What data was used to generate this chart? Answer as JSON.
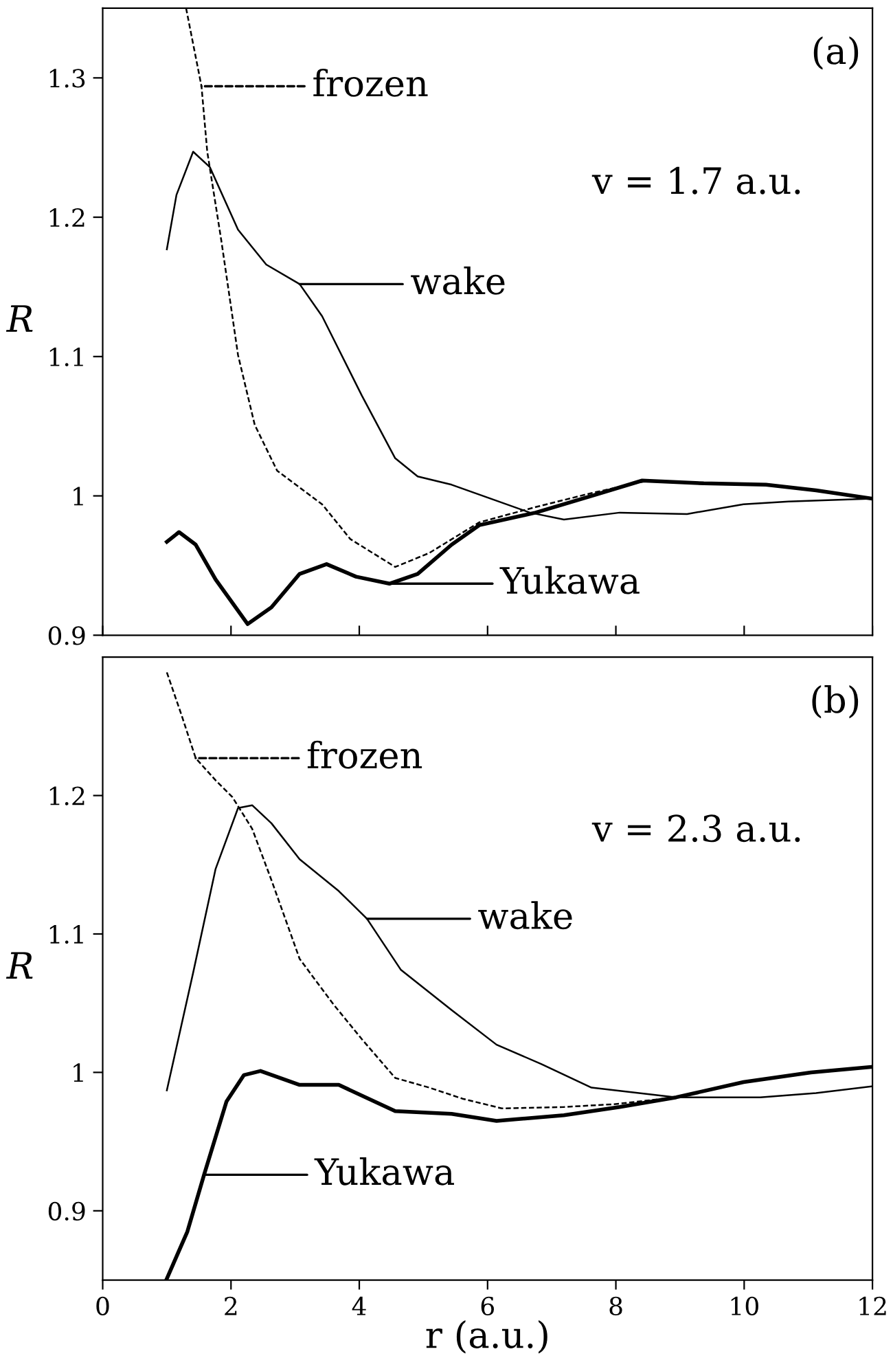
{
  "chart_data": [
    {
      "type": "line",
      "ylabel": "R",
      "xlim": [
        0,
        12
      ],
      "xticks": [
        {
          "value": 0,
          "label": null
        },
        {
          "value": 2,
          "label": null
        },
        {
          "value": 4,
          "label": null
        },
        {
          "value": 6,
          "label": null
        },
        {
          "value": 8,
          "label": null
        },
        {
          "value": 10,
          "label": null
        },
        {
          "value": 12,
          "label": null
        }
      ],
      "ylim": [
        0.9,
        1.35
      ],
      "yticks": [
        0.9,
        {
          "value": 1.0,
          "label": "1"
        },
        1.1,
        1.2,
        1.3
      ],
      "tick_labels": "y",
      "grid": false,
      "legend": "left",
      "series": [
        {
          "name": "frozen",
          "color": "#000000",
          "line_style": "dashed",
          "x": [
            1.3,
            1.54,
            1.63,
            1.85,
            2.11,
            2.37,
            2.72,
            3.07,
            3.42,
            3.86,
            4.56,
            5.09,
            5.87,
            6.75,
            7.62,
            8.5,
            9.37,
            10.34,
            11.12,
            12
          ],
          "values": [
            1.35,
            1.294,
            1.247,
            1.183,
            1.101,
            1.051,
            1.018,
            1.006,
            0.994,
            0.969,
            0.949,
            0.959,
            0.981,
            0.992,
            1.002,
            1.011,
            1.009,
            1.008,
            1.004,
            0.998
          ]
        },
        {
          "name": "wake",
          "color": "#000000",
          "line_style": "solid",
          "x": [
            1.0,
            1.15,
            1.41,
            1.67,
            2.11,
            2.55,
            3.07,
            3.42,
            4.04,
            4.56,
            4.91,
            5.44,
            6.05,
            6.66,
            7.19,
            8.06,
            9.11,
            9.99,
            10.69,
            12
          ],
          "values": [
            1.177,
            1.216,
            1.247,
            1.236,
            1.191,
            1.166,
            1.152,
            1.129,
            1.072,
            1.027,
            1.014,
            1.008,
            0.998,
            0.988,
            0.983,
            0.988,
            0.987,
            0.994,
            0.996,
            0.998
          ]
        },
        {
          "name": "Yukawa",
          "color": "#000000",
          "line_style": "solid",
          "x": [
            1.0,
            1.19,
            1.45,
            1.76,
            2.26,
            2.63,
            3.07,
            3.49,
            3.95,
            4.47,
            4.91,
            5.44,
            5.87,
            6.75,
            7.62,
            8.41,
            9.37,
            10.34,
            11.12,
            12
          ],
          "values": [
            0.967,
            0.974,
            0.965,
            0.94,
            0.908,
            0.92,
            0.944,
            0.951,
            0.942,
            0.937,
            0.944,
            0.965,
            0.979,
            0.988,
            1.0,
            1.011,
            1.009,
            1.008,
            1.004,
            0.998
          ]
        }
      ],
      "annotations": [
        "(a)",
        "v = 1.7 a.u."
      ]
    },
    {
      "type": "line",
      "xlabel": "r (a.u.)",
      "ylabel": "R",
      "xlim": [
        0,
        12
      ],
      "xticks": [
        0,
        2,
        4,
        6,
        8,
        10,
        12
      ],
      "ylim": [
        0.85,
        1.3
      ],
      "yticks": [
        0.9,
        {
          "value": 1.0,
          "label": "1"
        },
        1.1,
        1.2
      ],
      "grid": false,
      "legend": "left",
      "series": [
        {
          "name": "frozen",
          "color": "#000000",
          "line_style": "dashed",
          "x": [
            1.0,
            1.23,
            1.45,
            1.76,
            2.02,
            2.33,
            2.63,
            3.07,
            3.6,
            4.04,
            4.56,
            5.09,
            5.61,
            6.22,
            7.19,
            7.97,
            8.94,
            9.99,
            11.04,
            12
          ],
          "values": [
            1.289,
            1.258,
            1.227,
            1.211,
            1.199,
            1.176,
            1.139,
            1.082,
            1.049,
            1.024,
            0.996,
            0.989,
            0.981,
            0.974,
            0.975,
            0.977,
            0.982,
            0.993,
            1.0,
            1.004
          ]
        },
        {
          "name": "wake",
          "color": "#000000",
          "line_style": "solid",
          "x": [
            1.0,
            1.41,
            1.76,
            2.11,
            2.33,
            2.63,
            3.07,
            3.68,
            4.12,
            4.65,
            5.44,
            6.14,
            6.84,
            7.62,
            8.94,
            10.25,
            11.12,
            12
          ],
          "values": [
            0.987,
            1.072,
            1.147,
            1.191,
            1.193,
            1.18,
            1.154,
            1.131,
            1.111,
            1.074,
            1.045,
            1.02,
            1.006,
            0.989,
            0.982,
            0.982,
            0.985,
            0.99
          ]
        },
        {
          "name": "Yukawa",
          "color": "#000000",
          "line_style": "solid",
          "x": [
            1.0,
            1.32,
            1.58,
            1.93,
            2.2,
            2.46,
            3.07,
            3.68,
            4.56,
            5.44,
            6.14,
            7.19,
            8.06,
            8.94,
            9.99,
            11.04,
            12
          ],
          "values": [
            0.851,
            0.885,
            0.926,
            0.979,
            0.998,
            1.001,
            0.991,
            0.991,
            0.972,
            0.97,
            0.965,
            0.969,
            0.975,
            0.982,
            0.993,
            1.0,
            1.004
          ]
        }
      ],
      "annotations": [
        "(b)",
        "v = 2.3 a.u."
      ]
    }
  ]
}
